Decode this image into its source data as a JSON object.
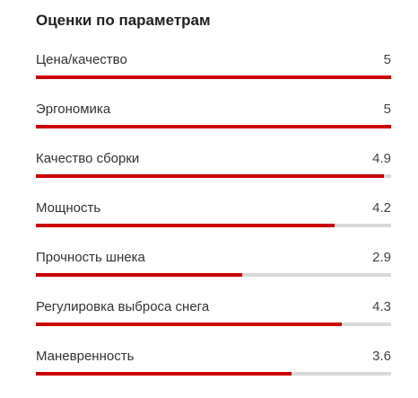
{
  "title": "Оценки по параметрам",
  "colors": {
    "accent": "#cc0000",
    "track": "#d9d9d9"
  },
  "max_score": 5,
  "ratings": [
    {
      "label": "Цена/качество",
      "value": "5",
      "score": 5
    },
    {
      "label": "Эргономика",
      "value": "5",
      "score": 5
    },
    {
      "label": "Качество сборки",
      "value": "4.9",
      "score": 4.9
    },
    {
      "label": "Мощность",
      "value": "4.2",
      "score": 4.2
    },
    {
      "label": "Прочность шнека",
      "value": "2.9",
      "score": 2.9
    },
    {
      "label": "Регулировка выброса снега",
      "value": "4.3",
      "score": 4.3
    },
    {
      "label": "Маневренность",
      "value": "3.6",
      "score": 3.6
    }
  ]
}
